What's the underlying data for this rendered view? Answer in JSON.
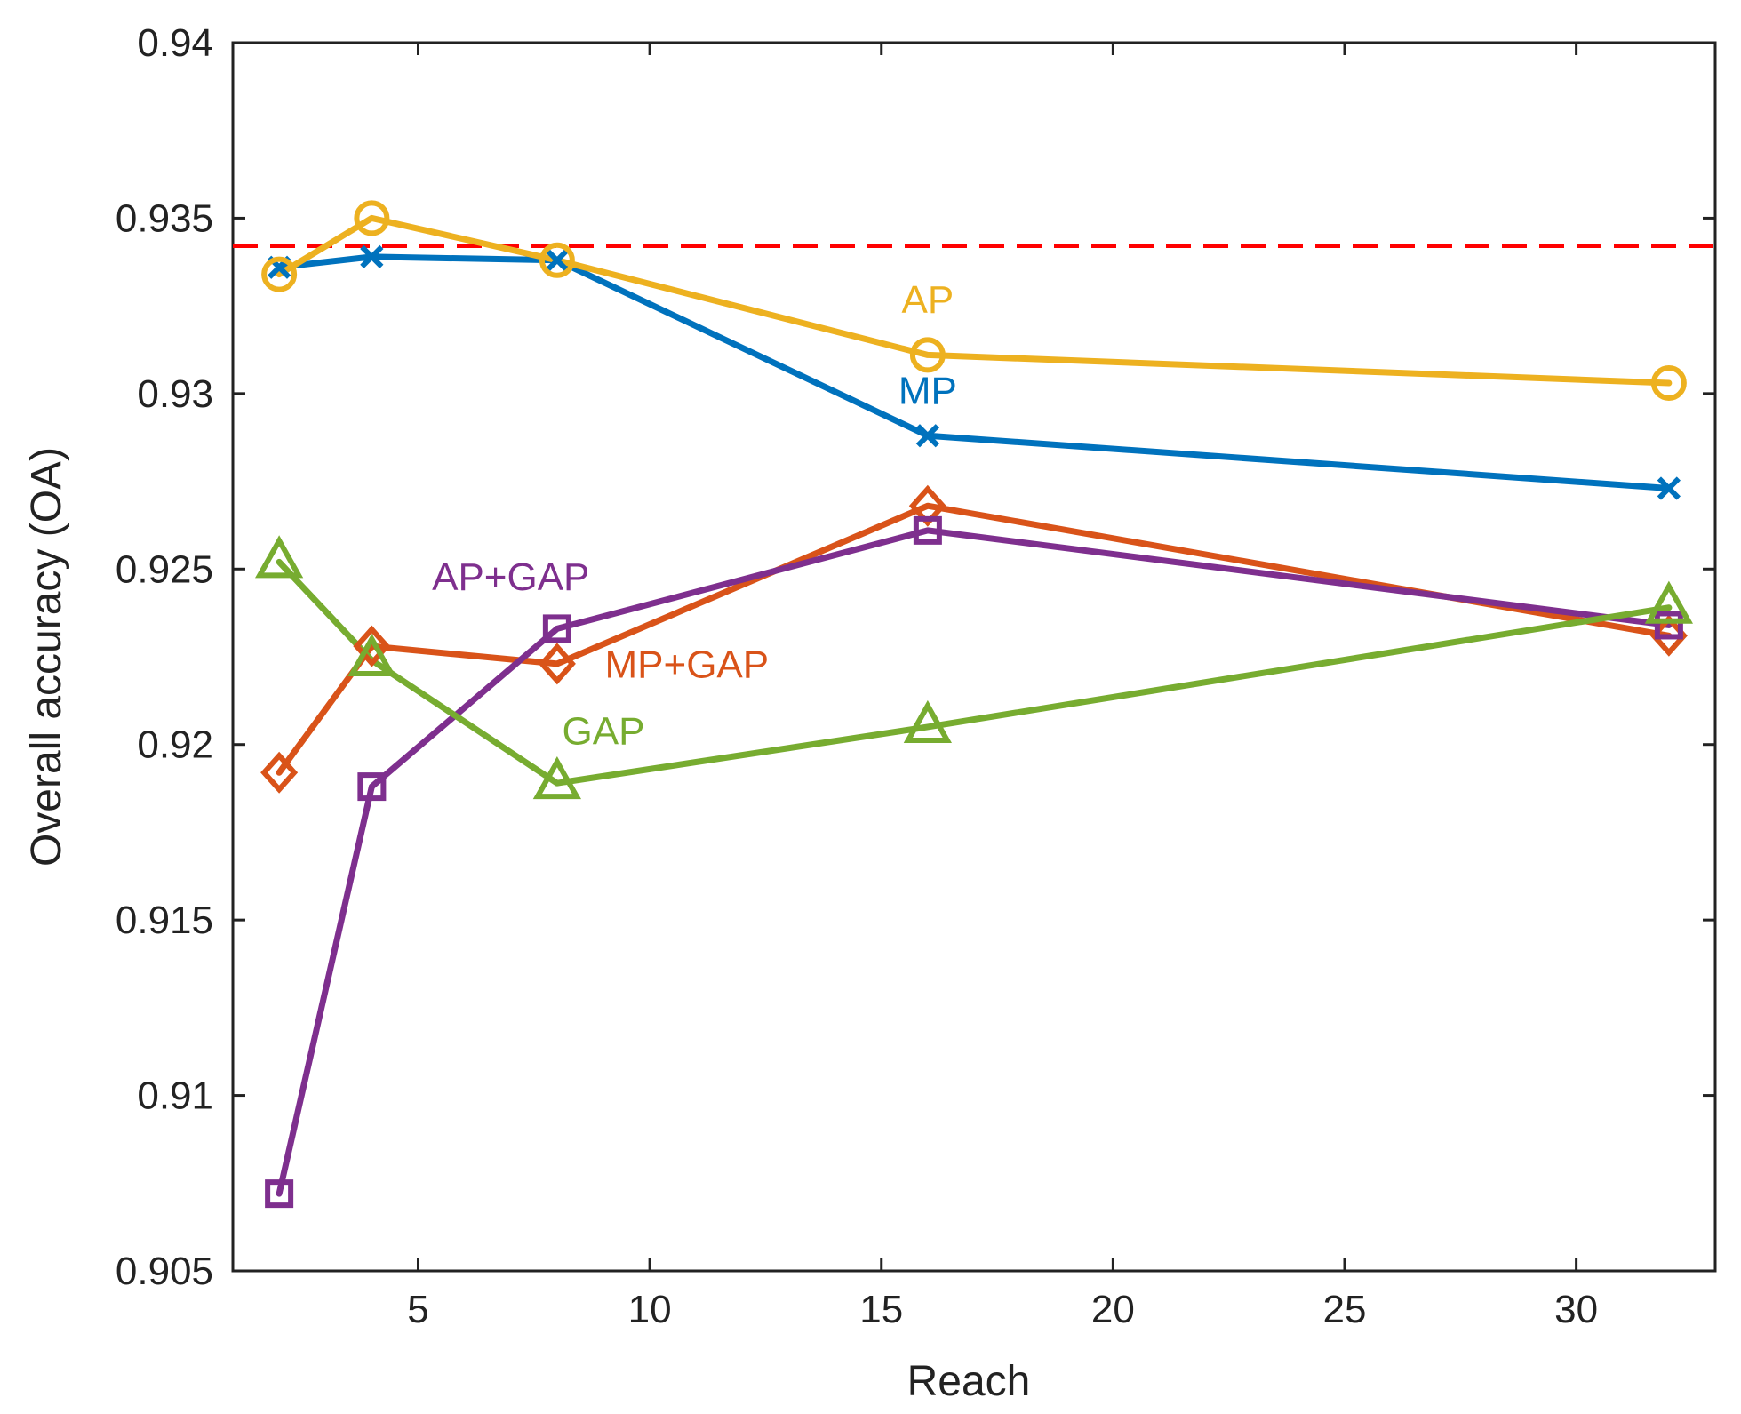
{
  "chart_data": {
    "type": "line",
    "xlabel": "Reach",
    "ylabel": "Overall accuracy (OA)",
    "xlim": [
      1,
      33
    ],
    "ylim": [
      0.905,
      0.94
    ],
    "xticks": [
      5,
      10,
      15,
      20,
      25,
      30
    ],
    "xtick_labels": [
      "5",
      "10",
      "15",
      "20",
      "25",
      "30"
    ],
    "yticks": [
      0.905,
      0.91,
      0.915,
      0.92,
      0.925,
      0.93,
      0.935,
      0.94
    ],
    "ytick_labels": [
      "0.905",
      "0.91",
      "0.915",
      "0.92",
      "0.925",
      "0.93",
      "0.935",
      "0.94"
    ],
    "grid": false,
    "x": [
      2,
      4,
      8,
      16,
      32
    ],
    "reference_line": {
      "y": 0.9342,
      "color": "#ff0000",
      "style": "dashed"
    },
    "series": [
      {
        "name": "MP",
        "color": "#0072bd",
        "marker": "x",
        "values": [
          0.9336,
          0.9339,
          0.9338,
          0.9288,
          0.9273
        ],
        "label_at": [
          16,
          0.9297
        ]
      },
      {
        "name": "AP",
        "color": "#edb120",
        "marker": "circle",
        "values": [
          0.9334,
          0.935,
          0.9338,
          0.9311,
          0.9303
        ],
        "label_at": [
          16,
          0.9323
        ]
      },
      {
        "name": "MP+GAP",
        "color": "#d95319",
        "marker": "diamond",
        "values": [
          0.9192,
          0.9228,
          0.9223,
          0.9268,
          0.9231
        ],
        "label_at": [
          10.8,
          0.9219
        ]
      },
      {
        "name": "AP+GAP",
        "color": "#7e2f8e",
        "marker": "square",
        "values": [
          0.9072,
          0.9188,
          0.9233,
          0.9261,
          0.9234
        ],
        "label_at": [
          7,
          0.9244
        ]
      },
      {
        "name": "GAP",
        "color": "#77ac30",
        "marker": "triangle",
        "values": [
          0.9252,
          0.9224,
          0.9189,
          0.9205,
          0.9239
        ],
        "label_at": [
          9,
          0.92
        ]
      }
    ]
  }
}
